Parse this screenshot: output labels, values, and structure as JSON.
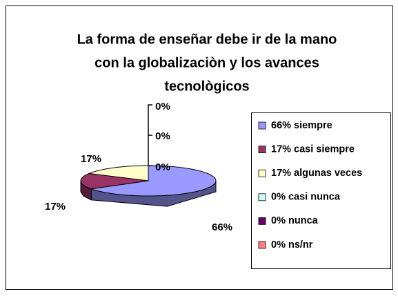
{
  "chart_data": {
    "type": "pie",
    "title": [
      "La forma de enseñar debe ir de la mano",
      "con la globalizaciòn y los avances",
      "tecnològicos"
    ],
    "categories": [
      "66% siempre",
      "17% casi siempre",
      "17% algunas veces",
      "0% casi nunca",
      "0% nunca",
      "0% ns/nr"
    ],
    "values": [
      66,
      17,
      17,
      0,
      0,
      0
    ],
    "value_labels": [
      "66%",
      "17%",
      "17%",
      "0%",
      "0%",
      "0%"
    ],
    "colors": [
      "#9999ff",
      "#993366",
      "#ffffcc",
      "#ccffff",
      "#660066",
      "#ff8080"
    ],
    "legend": "right"
  }
}
